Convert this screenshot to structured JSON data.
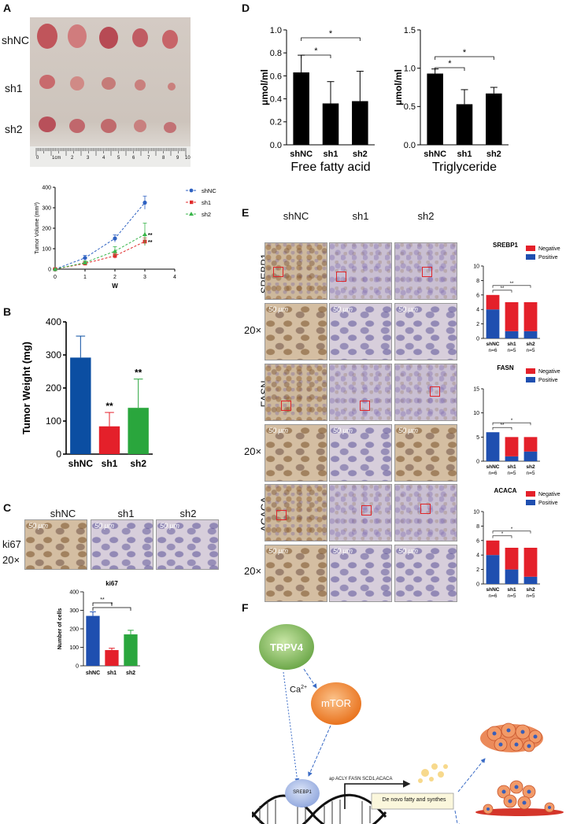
{
  "panels": {
    "A": "A",
    "B": "B",
    "C": "C",
    "D": "D",
    "E": "E",
    "F": "F"
  },
  "panelA": {
    "row_labels": [
      "shNC",
      "sh1",
      "sh2"
    ],
    "ruler_labels": [
      "0",
      "1cm",
      "2",
      "3",
      "4",
      "5",
      "6",
      "7",
      "8",
      "9",
      "10"
    ]
  },
  "chart_data": [
    {
      "id": "tumor_volume",
      "type": "line",
      "xlabel": "W",
      "ylabel": "Tumor Volume (mm³)",
      "xlim": [
        0,
        4
      ],
      "ylim": [
        0,
        400
      ],
      "x_ticks": [
        "0",
        "1",
        "2",
        "3",
        "4"
      ],
      "y_ticks": [
        "0",
        "100",
        "200",
        "300",
        "400"
      ],
      "x": [
        0,
        1,
        2,
        3
      ],
      "series": [
        {
          "name": "shNC",
          "color": "#2f62c2",
          "values": [
            0,
            55,
            150,
            325
          ],
          "err": [
            0,
            12,
            18,
            32
          ],
          "sig": ""
        },
        {
          "name": "sh1",
          "color": "#e02b2b",
          "values": [
            0,
            28,
            65,
            135
          ],
          "err": [
            0,
            6,
            12,
            18
          ],
          "sig": "**"
        },
        {
          "name": "sh2",
          "color": "#39b54a",
          "values": [
            0,
            32,
            88,
            170
          ],
          "err": [
            0,
            8,
            22,
            55
          ],
          "sig": "**"
        }
      ],
      "legend": "top-right"
    },
    {
      "id": "tumor_weight",
      "type": "bar",
      "ylabel": "Tumor Weight (mg)",
      "ylim": [
        0,
        400
      ],
      "y_ticks": [
        "0",
        "100",
        "200",
        "300",
        "400"
      ],
      "categories": [
        "shNC",
        "sh1",
        "sh2"
      ],
      "values": [
        292,
        84,
        140
      ],
      "err": [
        65,
        42,
        87
      ],
      "colors": [
        "#0b4ea2",
        "#e4202a",
        "#2aa63d"
      ],
      "sig": [
        "",
        "**",
        "**"
      ]
    },
    {
      "id": "ki67_cells",
      "type": "bar",
      "title": "ki67",
      "ylabel": "Number of cells",
      "ylim": [
        0,
        400
      ],
      "y_ticks": [
        "0",
        "100",
        "200",
        "300",
        "400"
      ],
      "categories": [
        "shNC",
        "sh1",
        "sh2"
      ],
      "values": [
        270,
        85,
        170
      ],
      "err": [
        22,
        10,
        22
      ],
      "colors": [
        "#1f4fb0",
        "#e4202a",
        "#2aa63d"
      ],
      "brackets": [
        {
          "from": 0,
          "to": 1,
          "label": "**"
        },
        {
          "from": 0,
          "to": 2,
          "label": "*"
        }
      ]
    },
    {
      "id": "ffa",
      "type": "bar",
      "xlabel": "Free fatty acid",
      "ylabel": "μmol/ml",
      "ylim": [
        0,
        1.0
      ],
      "y_ticks": [
        "0.0",
        "0.2",
        "0.4",
        "0.6",
        "0.8",
        "1.0"
      ],
      "categories": [
        "shNC",
        "sh1",
        "sh2"
      ],
      "values": [
        0.63,
        0.36,
        0.38
      ],
      "err": [
        0.15,
        0.19,
        0.26
      ],
      "brackets": [
        {
          "from": 0,
          "to": 1,
          "label": "*"
        },
        {
          "from": 0,
          "to": 2,
          "label": "*"
        }
      ]
    },
    {
      "id": "tg",
      "type": "bar",
      "xlabel": "Triglyceride",
      "ylabel": "μmol/ml",
      "ylim": [
        0,
        1.5
      ],
      "y_ticks": [
        "0.0",
        "0.5",
        "1.0",
        "1.5"
      ],
      "categories": [
        "shNC",
        "sh1",
        "sh2"
      ],
      "values": [
        0.93,
        0.53,
        0.67
      ],
      "err": [
        0.06,
        0.19,
        0.08
      ],
      "brackets": [
        {
          "from": 0,
          "to": 1,
          "label": "*"
        },
        {
          "from": 0,
          "to": 2,
          "label": "*"
        }
      ]
    },
    {
      "id": "srebp1_ihc",
      "type": "bar",
      "stacked": true,
      "title": "SREBP1",
      "ylim": [
        0,
        10
      ],
      "y_ticks": [
        "0",
        "2",
        "4",
        "6",
        "8",
        "10"
      ],
      "categories": [
        "shNC\nn=6",
        "sh1\nn=5",
        "sh2\nn=5"
      ],
      "series": [
        {
          "name": "Positive",
          "color": "#1f4fb0",
          "values": [
            4,
            1,
            1
          ]
        },
        {
          "name": "Negative",
          "color": "#e4202a",
          "values": [
            2,
            4,
            4
          ]
        }
      ],
      "brackets": [
        {
          "from": 0,
          "to": 1,
          "label": "**"
        },
        {
          "from": 0,
          "to": 2,
          "label": "**"
        }
      ]
    },
    {
      "id": "fasn_ihc",
      "type": "bar",
      "stacked": true,
      "title": "FASN",
      "ylim": [
        0,
        15
      ],
      "y_ticks": [
        "0",
        "5",
        "10",
        "15"
      ],
      "categories": [
        "shNC\nn=6",
        "sh1\nn=5",
        "sh2\nn=5"
      ],
      "series": [
        {
          "name": "Positive",
          "color": "#1f4fb0",
          "values": [
            6,
            1,
            2
          ]
        },
        {
          "name": "Negative",
          "color": "#e4202a",
          "values": [
            0,
            4,
            3
          ]
        }
      ],
      "brackets": [
        {
          "from": 0,
          "to": 1,
          "label": "**"
        },
        {
          "from": 0,
          "to": 2,
          "label": "*"
        }
      ]
    },
    {
      "id": "acaca_ihc",
      "type": "bar",
      "stacked": true,
      "title": "ACACA",
      "ylim": [
        0,
        10
      ],
      "y_ticks": [
        "0",
        "2",
        "4",
        "6",
        "8",
        "10"
      ],
      "categories": [
        "shNC\nn=6",
        "sh1\nn=5",
        "sh2\nn=5"
      ],
      "series": [
        {
          "name": "Positive",
          "color": "#1f4fb0",
          "values": [
            4,
            2,
            1
          ]
        },
        {
          "name": "Negative",
          "color": "#e4202a",
          "values": [
            2,
            3,
            4
          ]
        }
      ],
      "brackets": [
        {
          "from": 0,
          "to": 1,
          "label": "*"
        },
        {
          "from": 0,
          "to": 2,
          "label": "*"
        }
      ]
    }
  ],
  "panelC": {
    "columns": [
      "shNC",
      "sh1",
      "sh2"
    ],
    "row_label": "ki67",
    "mag": "20×",
    "scale": "50 μm"
  },
  "panelE": {
    "columns": [
      "shNC",
      "sh1",
      "sh2"
    ],
    "rows": [
      "SREBP1",
      "FASN",
      "ACACA"
    ],
    "mag": "20×",
    "scale": "50 μm"
  },
  "panelF": {
    "trpv4": "TRPV4",
    "ca": "Ca",
    "ca_sup": "2+",
    "mtor": "mTOR",
    "srebp1": "SREBP1",
    "genes": "ap ACLY FASN SCD1,ACACA",
    "box": "De novo fatty and synthes"
  }
}
